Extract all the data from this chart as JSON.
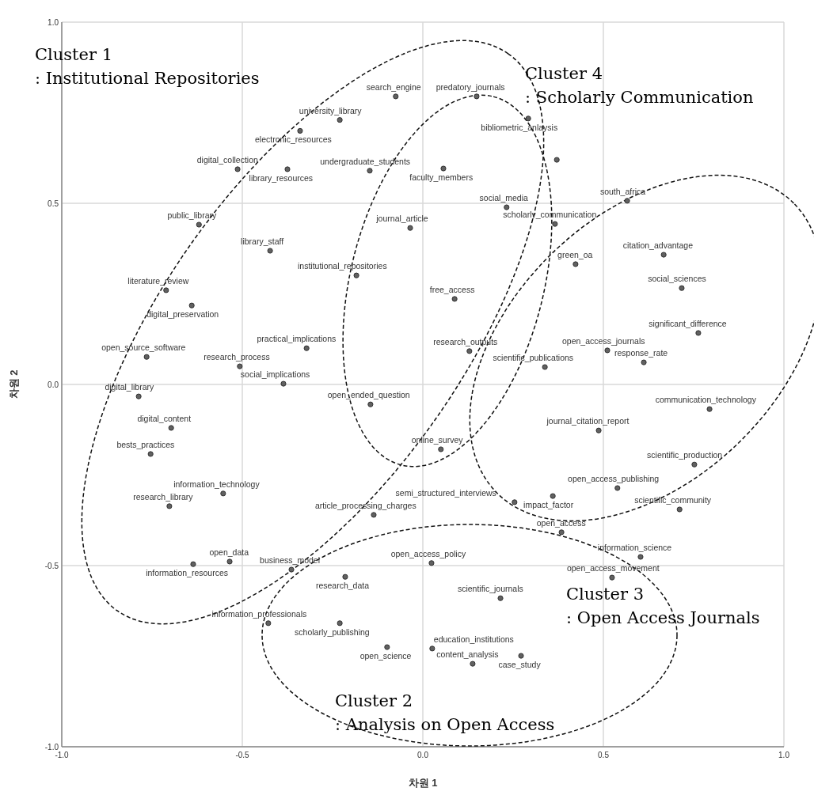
{
  "chart_data": {
    "type": "scatter",
    "xlabel": "차원 1",
    "ylabel": "차원 2",
    "xlim": [
      -1,
      1
    ],
    "ylim": [
      -1,
      1
    ],
    "xticks": [
      {
        "value": -1,
        "label": "-1.0"
      },
      {
        "value": -0.5,
        "label": "-0.5"
      },
      {
        "value": 0,
        "label": "0.0"
      },
      {
        "value": 0.5,
        "label": "0.5"
      },
      {
        "value": 1,
        "label": "1.0"
      }
    ],
    "yticks": [
      {
        "value": -1,
        "label": "-1.0"
      },
      {
        "value": -0.5,
        "label": "-0.5"
      },
      {
        "value": 0,
        "label": "0.0"
      },
      {
        "value": 0.5,
        "label": "0.5"
      },
      {
        "value": 1,
        "label": "1.0"
      }
    ],
    "grid": true,
    "marker": "circle",
    "series": [
      {
        "color": "#616161",
        "x": [
          -0.075,
          0.149,
          -0.23,
          -0.34,
          0.292,
          0.371,
          -0.513,
          -0.375,
          -0.147,
          0.057,
          0.566,
          0.232,
          -0.62,
          0.366,
          -0.035,
          -0.423,
          0.667,
          0.423,
          -0.184,
          0.717,
          -0.711,
          0.088,
          -0.64,
          0.763,
          -0.322,
          0.511,
          0.129,
          -0.765,
          0.612,
          0.338,
          -0.507,
          -0.386,
          -0.787,
          -0.145,
          0.794,
          -0.697,
          0.487,
          0.05,
          -0.754,
          0.752,
          -0.553,
          0.539,
          0.36,
          -0.702,
          0.711,
          -0.136,
          0.254,
          0.384,
          0.603,
          0.024,
          -0.636,
          -0.535,
          -0.364,
          0.524,
          -0.215,
          0.215,
          -0.428,
          -0.23,
          -0.099,
          0.026,
          0.138,
          0.272
        ],
        "values": [
          0.795,
          0.795,
          0.73,
          0.7,
          0.734,
          0.62,
          0.594,
          0.594,
          0.59,
          0.596,
          0.507,
          0.489,
          0.441,
          0.443,
          0.432,
          0.369,
          0.358,
          0.332,
          0.301,
          0.266,
          0.26,
          0.236,
          0.218,
          0.142,
          0.1,
          0.094,
          0.092,
          0.076,
          0.061,
          0.048,
          0.05,
          0.002,
          -0.033,
          -0.055,
          -0.068,
          -0.12,
          -0.127,
          -0.179,
          -0.192,
          -0.221,
          -0.301,
          -0.286,
          -0.308,
          -0.336,
          -0.345,
          -0.36,
          -0.325,
          -0.408,
          -0.476,
          -0.493,
          -0.496,
          -0.489,
          -0.511,
          -0.533,
          -0.531,
          -0.59,
          -0.659,
          -0.659,
          -0.725,
          -0.729,
          -0.771,
          -0.749
        ]
      }
    ],
    "annotations": [
      "Cluster 1",
      ": Institutional Repositories",
      "Cluster 4",
      ": Scholarly Communication",
      "Cluster 3",
      ": Open Access Journals",
      "Cluster 2",
      ": Analysis on Open Access",
      {
        "text": "search_engine",
        "x": -0.075,
        "y": 0.795
      },
      {
        "text": "predatory_journals",
        "x": 0.149,
        "y": 0.795
      },
      {
        "text": "university_library",
        "x": -0.23,
        "y": 0.73
      },
      {
        "text": "electronic_resources",
        "x": -0.34,
        "y": 0.7
      },
      {
        "text": "bibliometric_anlaysis",
        "x": 0.292,
        "y": 0.734
      },
      {
        "text": "digital_collection",
        "x": -0.513,
        "y": 0.594
      },
      {
        "text": "library_resources",
        "x": -0.375,
        "y": 0.594
      },
      {
        "text": "undergraduate_students",
        "x": -0.147,
        "y": 0.59
      },
      {
        "text": "faculty_members",
        "x": 0.057,
        "y": 0.596
      },
      {
        "text": "south_africa",
        "x": 0.566,
        "y": 0.507
      },
      {
        "text": "social_media",
        "x": 0.232,
        "y": 0.489
      },
      {
        "text": "public_library",
        "x": -0.62,
        "y": 0.441
      },
      {
        "text": "scholarly_communication",
        "x": 0.366,
        "y": 0.443
      },
      {
        "text": "journal_article",
        "x": -0.035,
        "y": 0.432
      },
      {
        "text": "library_staff",
        "x": -0.423,
        "y": 0.369
      },
      {
        "text": "citation_advantage",
        "x": 0.667,
        "y": 0.358
      },
      {
        "text": "green_oa",
        "x": 0.423,
        "y": 0.332
      },
      {
        "text": "institutional_repositories",
        "x": -0.184,
        "y": 0.301
      },
      {
        "text": "social_sciences",
        "x": 0.717,
        "y": 0.266
      },
      {
        "text": "literature_review",
        "x": -0.711,
        "y": 0.26
      },
      {
        "text": "free_access",
        "x": 0.088,
        "y": 0.236
      },
      {
        "text": "digital_preservation",
        "x": -0.64,
        "y": 0.218
      },
      {
        "text": "significant_difference",
        "x": 0.763,
        "y": 0.142
      },
      {
        "text": "practical_implications",
        "x": -0.322,
        "y": 0.1
      },
      {
        "text": "open_access_journals",
        "x": 0.511,
        "y": 0.094
      },
      {
        "text": "research_outputs",
        "x": 0.129,
        "y": 0.092
      },
      {
        "text": "open_source_software",
        "x": -0.765,
        "y": 0.076
      },
      {
        "text": "response_rate",
        "x": 0.612,
        "y": 0.061
      },
      {
        "text": "scientific_publications",
        "x": 0.338,
        "y": 0.048
      },
      {
        "text": "research_process",
        "x": -0.507,
        "y": 0.05
      },
      {
        "text": "social_implications",
        "x": -0.386,
        "y": 0.002
      },
      {
        "text": "digital_library",
        "x": -0.787,
        "y": -0.033
      },
      {
        "text": "open_ended_question",
        "x": -0.145,
        "y": -0.055
      },
      {
        "text": "communication_technology",
        "x": 0.794,
        "y": -0.068
      },
      {
        "text": "digital_content",
        "x": -0.697,
        "y": -0.12
      },
      {
        "text": "journal_citation_report",
        "x": 0.487,
        "y": -0.127
      },
      {
        "text": "online_survey",
        "x": 0.05,
        "y": -0.179
      },
      {
        "text": "bests_practices",
        "x": -0.754,
        "y": -0.192
      },
      {
        "text": "scientific_production",
        "x": 0.752,
        "y": -0.221
      },
      {
        "text": "information_technology",
        "x": -0.553,
        "y": -0.301
      },
      {
        "text": "open_access_publishing",
        "x": 0.539,
        "y": -0.286
      },
      {
        "text": "impact_factor",
        "x": 0.36,
        "y": -0.308
      },
      {
        "text": "research_library",
        "x": -0.702,
        "y": -0.336
      },
      {
        "text": "scientific_community",
        "x": 0.711,
        "y": -0.345
      },
      {
        "text": "article_processing_charges",
        "x": -0.136,
        "y": -0.36
      },
      {
        "text": "semi_structured_interviews",
        "x": 0.254,
        "y": -0.325
      },
      {
        "text": "open_access",
        "x": 0.384,
        "y": -0.408
      },
      {
        "text": "information_science",
        "x": 0.603,
        "y": -0.476
      },
      {
        "text": "open_access_policy",
        "x": 0.024,
        "y": -0.493
      },
      {
        "text": "information_resources",
        "x": -0.636,
        "y": -0.496
      },
      {
        "text": "open_data",
        "x": -0.535,
        "y": -0.489
      },
      {
        "text": "business_model",
        "x": -0.364,
        "y": -0.511
      },
      {
        "text": "open_access_movement",
        "x": 0.524,
        "y": -0.533
      },
      {
        "text": "research_data",
        "x": -0.215,
        "y": -0.531
      },
      {
        "text": "scientific_journals",
        "x": 0.215,
        "y": -0.59
      },
      {
        "text": "information_professionals",
        "x": -0.428,
        "y": -0.659
      },
      {
        "text": "scholarly_publishing",
        "x": -0.23,
        "y": -0.659
      },
      {
        "text": "open_science",
        "x": -0.099,
        "y": -0.725
      },
      {
        "text": "education_institutions",
        "x": 0.026,
        "y": -0.729
      },
      {
        "text": "content_analysis",
        "x": 0.138,
        "y": -0.771
      },
      {
        "text": "case_study",
        "x": 0.272,
        "y": -0.749
      }
    ]
  }
}
